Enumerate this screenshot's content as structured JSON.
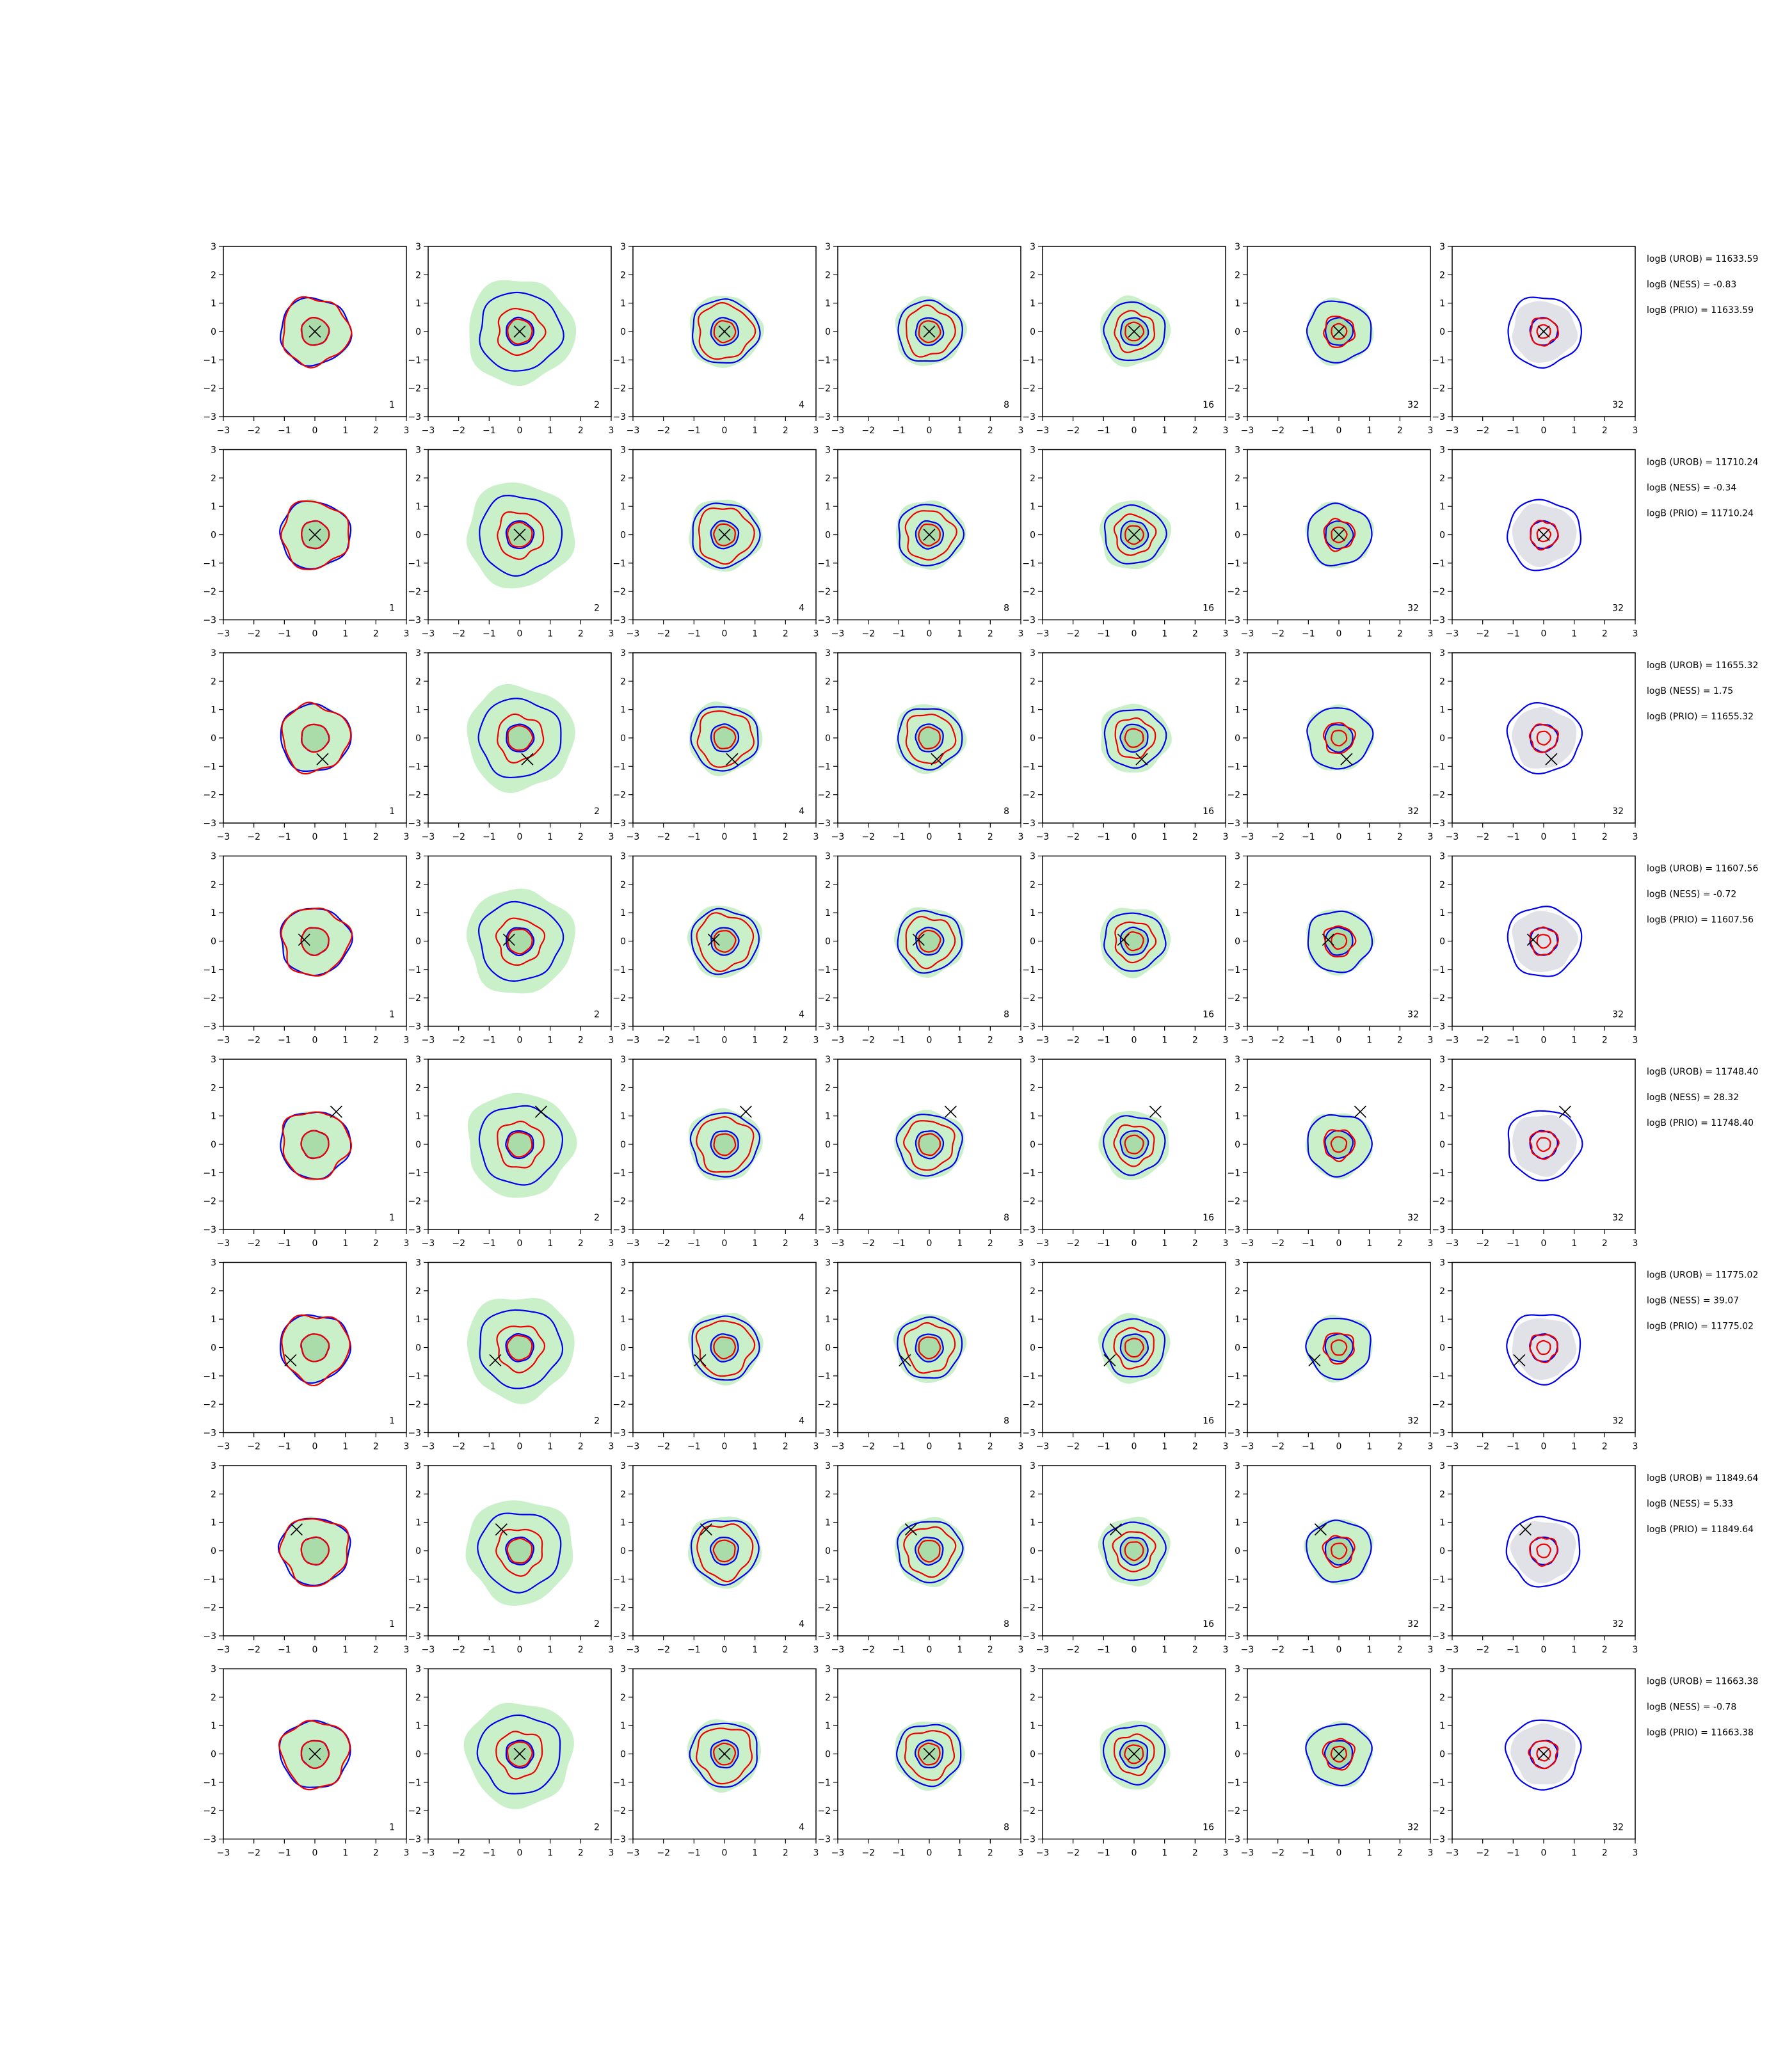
{
  "chart_data": {
    "type": "contour-grid",
    "xlim": [
      -3,
      3
    ],
    "ylim": [
      -3,
      3
    ],
    "ticks": [
      "−3",
      "−2",
      "−1",
      "0",
      "1",
      "2",
      "3"
    ],
    "column_labels": [
      "1",
      "2",
      "4",
      "8",
      "16",
      "32",
      "32"
    ],
    "colors": {
      "fill": "#c9f0c9",
      "fill_dark": "#a9dca9",
      "fill_grey": "#e1e1e8",
      "blue": "#0000ee",
      "red": "#ee0000",
      "marker": "#000000"
    },
    "rows": [
      {
        "marker": [
          0,
          0
        ],
        "stats": [
          "logB (UROB) = 11633.59",
          "logB (NESS) = -0.83",
          "logB (PRIO) = 11633.59"
        ]
      },
      {
        "marker": [
          0,
          0
        ],
        "stats": [
          "logB (UROB) = 11710.24",
          "logB (NESS) = -0.34",
          "logB (PRIO) = 11710.24"
        ]
      },
      {
        "marker": [
          0.25,
          -0.75
        ],
        "stats": [
          "logB (UROB) = 11655.32",
          "logB (NESS) = 1.75",
          "logB (PRIO) = 11655.32"
        ]
      },
      {
        "marker": [
          -0.35,
          0.05
        ],
        "stats": [
          "logB (UROB) = 11607.56",
          "logB (NESS) = -0.72",
          "logB (PRIO) = 11607.56"
        ]
      },
      {
        "marker": [
          0.7,
          1.15
        ],
        "stats": [
          "logB (UROB) = 11748.40",
          "logB (NESS) = 28.32",
          "logB (PRIO) = 11748.40"
        ]
      },
      {
        "marker": [
          -0.8,
          -0.45
        ],
        "stats": [
          "logB (UROB) = 11775.02",
          "logB (NESS) = 39.07",
          "logB (PRIO) = 11775.02"
        ]
      },
      {
        "marker": [
          -0.6,
          0.75
        ],
        "stats": [
          "logB (UROB) = 11849.64",
          "logB (NESS) = 5.33",
          "logB (PRIO) = 11849.64"
        ]
      },
      {
        "marker": [
          0,
          0
        ],
        "stats": [
          "logB (UROB) = 11663.38",
          "logB (NESS) = -0.78",
          "logB (PRIO) = 11663.38"
        ]
      }
    ]
  }
}
